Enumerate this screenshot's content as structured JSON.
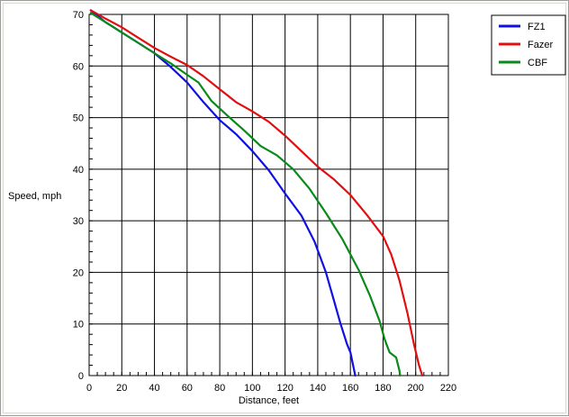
{
  "chart_data": {
    "type": "line",
    "title": "",
    "xlabel": "Distance, feet",
    "ylabel": "Speed, mph",
    "xlim": [
      0,
      220
    ],
    "ylim": [
      0,
      70
    ],
    "x_ticks": [
      0,
      20,
      40,
      60,
      80,
      100,
      120,
      140,
      160,
      180,
      200,
      220
    ],
    "y_ticks": [
      0,
      10,
      20,
      30,
      40,
      50,
      60,
      70
    ],
    "x_tick_labels": [
      "0",
      "20",
      "40",
      "60",
      "80",
      "100",
      "120",
      "140",
      "160",
      "180",
      "200",
      "220"
    ],
    "y_tick_labels": [
      "0",
      "10",
      "20",
      "30",
      "40",
      "50",
      "60",
      "70"
    ],
    "grid": true,
    "legend_position": "top-right outside plot",
    "series": [
      {
        "name": "FZ1",
        "color": "#1010e0",
        "points": [
          [
            1,
            70.8
          ],
          [
            10,
            68.5
          ],
          [
            20,
            66.5
          ],
          [
            30,
            64.5
          ],
          [
            40,
            62.5
          ],
          [
            50,
            59.8
          ],
          [
            60,
            56.8
          ],
          [
            70,
            53
          ],
          [
            80,
            49.5
          ],
          [
            90,
            46.8
          ],
          [
            100,
            43.5
          ],
          [
            110,
            39.8
          ],
          [
            120,
            35.3
          ],
          [
            130,
            31
          ],
          [
            138,
            26
          ],
          [
            145,
            20
          ],
          [
            150,
            14.5
          ],
          [
            154,
            10
          ],
          [
            158,
            6
          ],
          [
            160,
            4.5
          ],
          [
            162,
            1.5
          ],
          [
            163,
            0
          ]
        ]
      },
      {
        "name": "Fazer",
        "color": "#e01010",
        "points": [
          [
            1,
            70.8
          ],
          [
            10,
            69.2
          ],
          [
            20,
            67.5
          ],
          [
            30,
            65.5
          ],
          [
            40,
            63.5
          ],
          [
            50,
            61.8
          ],
          [
            60,
            60.2
          ],
          [
            70,
            58
          ],
          [
            80,
            55.5
          ],
          [
            90,
            53
          ],
          [
            100,
            51.2
          ],
          [
            110,
            49.2
          ],
          [
            120,
            46.5
          ],
          [
            130,
            43.5
          ],
          [
            140,
            40.5
          ],
          [
            150,
            38
          ],
          [
            160,
            35
          ],
          [
            170,
            31.2
          ],
          [
            180,
            27
          ],
          [
            185,
            23.5
          ],
          [
            190,
            18.5
          ],
          [
            195,
            12
          ],
          [
            199,
            6
          ],
          [
            202,
            2
          ],
          [
            204,
            0
          ]
        ]
      },
      {
        "name": "CBF",
        "color": "#0a8a1a",
        "points": [
          [
            1,
            70.3
          ],
          [
            10,
            68.5
          ],
          [
            20,
            66.5
          ],
          [
            30,
            64.5
          ],
          [
            40,
            62.5
          ],
          [
            50,
            60.5
          ],
          [
            60,
            58.3
          ],
          [
            67,
            56.8
          ],
          [
            75,
            53.2
          ],
          [
            85,
            50.3
          ],
          [
            95,
            47.5
          ],
          [
            105,
            44.5
          ],
          [
            115,
            42.7
          ],
          [
            125,
            40
          ],
          [
            135,
            36.2
          ],
          [
            145,
            31.5
          ],
          [
            155,
            26.5
          ],
          [
            165,
            20.5
          ],
          [
            172,
            15.5
          ],
          [
            178,
            10.5
          ],
          [
            181,
            7
          ],
          [
            184,
            4.5
          ],
          [
            188,
            3.5
          ],
          [
            190,
            1
          ],
          [
            190.5,
            0
          ]
        ]
      }
    ]
  }
}
